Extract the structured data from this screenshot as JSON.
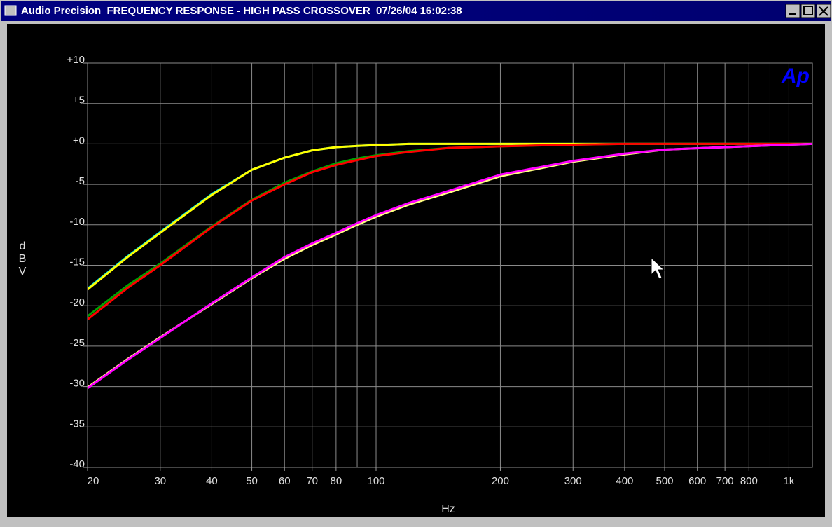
{
  "window_title": "Audio Precision  FREQUENCY RESPONSE - HIGH PASS CROSSOVER  07/26/04 16:02:38",
  "chart_data": {
    "type": "line",
    "logo": "Ap",
    "x_label": "Hz",
    "y_label": "dBV",
    "x_log": true,
    "grid": true,
    "xlim": [
      20,
      1140
    ],
    "ylim": [
      -40,
      10
    ],
    "xticks": [
      20,
      30,
      40,
      50,
      60,
      70,
      80,
      100,
      200,
      300,
      400,
      500,
      600,
      700,
      800,
      {
        "value": 1000,
        "label": "1k"
      }
    ],
    "xgrid": [
      20,
      30,
      40,
      50,
      60,
      70,
      80,
      90,
      100,
      200,
      300,
      400,
      500,
      600,
      700,
      800,
      900,
      1000
    ],
    "yticks": [
      {
        "value": 10,
        "label": "+10"
      },
      {
        "value": 5,
        "label": "+5"
      },
      {
        "value": 0,
        "label": "+0"
      },
      -5,
      -10,
      -15,
      -20,
      -25,
      -30,
      -35,
      -40
    ],
    "x": [
      20,
      25,
      30,
      40,
      50,
      60,
      70,
      80,
      90,
      100,
      120,
      150,
      200,
      300,
      400,
      500,
      700,
      1000,
      1140
    ],
    "series": [
      {
        "color": "#00e0e0",
        "values": [
          -17.9,
          -13.9,
          -10.9,
          -6.2,
          -3.2,
          -1.7,
          -0.8,
          -0.4,
          -0.25,
          -0.15,
          0,
          0,
          0,
          0,
          0,
          0,
          0,
          0,
          0
        ]
      },
      {
        "color": "#ffff00",
        "values": [
          -18,
          -14,
          -11,
          -6.3,
          -3.2,
          -1.7,
          -0.8,
          -0.4,
          -0.25,
          -0.15,
          0,
          0,
          0,
          0,
          0,
          0,
          0,
          0,
          0
        ]
      },
      {
        "color": "#00a000",
        "values": [
          -21.3,
          -17.5,
          -14.8,
          -10.2,
          -6.9,
          -4.8,
          -3.4,
          -2.4,
          -1.8,
          -1.4,
          -0.9,
          -0.5,
          -0.3,
          -0.1,
          0,
          0,
          0,
          0,
          0
        ]
      },
      {
        "color": "#ff0000",
        "values": [
          -21.7,
          -17.8,
          -15,
          -10.3,
          -7,
          -5,
          -3.5,
          -2.6,
          -2,
          -1.5,
          -1,
          -0.5,
          -0.3,
          -0.1,
          0,
          0,
          0,
          0,
          0
        ]
      },
      {
        "color": "#ffff80",
        "values": [
          -30.1,
          -26.6,
          -23.9,
          -19.8,
          -16.6,
          -14.2,
          -12.5,
          -11.2,
          -10,
          -9,
          -7.5,
          -6,
          -4,
          -2.2,
          -1.3,
          -0.7,
          -0.4,
          -0.1,
          0
        ]
      },
      {
        "color": "#ff00ff",
        "values": [
          -30.2,
          -26.7,
          -24,
          -19.7,
          -16.5,
          -14,
          -12.3,
          -11,
          -9.8,
          -8.8,
          -7.3,
          -5.8,
          -3.8,
          -2.1,
          -1.2,
          -0.7,
          -0.4,
          -0.1,
          0
        ]
      }
    ]
  }
}
